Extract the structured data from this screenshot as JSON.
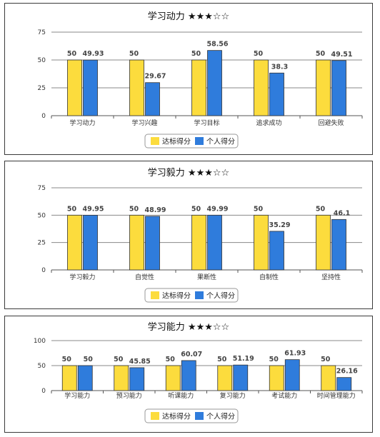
{
  "colors": {
    "target": "#fcdc3d",
    "personal": "#2f7cdc",
    "bar_stroke": "#333333",
    "grid": "#888888"
  },
  "icons": {
    "legend_target": "yellow-square",
    "legend_personal": "blue-square"
  },
  "chart_data": [
    {
      "type": "bar",
      "title": "学习动力 ★★★☆☆",
      "categories": [
        "学习动力",
        "学习兴趣",
        "学习目标",
        "追求成功",
        "回避失败"
      ],
      "series": [
        {
          "name": "达标得分",
          "values": [
            50,
            50,
            50,
            50,
            50
          ]
        },
        {
          "name": "个人得分",
          "values": [
            49.93,
            29.67,
            58.56,
            38.3,
            49.51
          ]
        }
      ],
      "labels": [
        [
          "50",
          "50",
          "50",
          "50",
          "50"
        ],
        [
          "49.93",
          "29.67",
          "58.56",
          "38.3",
          "49.51"
        ]
      ],
      "yticks": [
        0,
        25,
        50,
        75
      ],
      "ylim": [
        0,
        75
      ],
      "grid": true,
      "legend": "bottom-center"
    },
    {
      "type": "bar",
      "title": "学习毅力 ★★★☆☆",
      "categories": [
        "学习毅力",
        "自觉性",
        "果断性",
        "自制性",
        "坚持性"
      ],
      "series": [
        {
          "name": "达标得分",
          "values": [
            50,
            50,
            50,
            50,
            50
          ]
        },
        {
          "name": "个人得分",
          "values": [
            49.95,
            48.99,
            49.99,
            35.29,
            46.1
          ]
        }
      ],
      "labels": [
        [
          "50",
          "50",
          "50",
          "50",
          "50"
        ],
        [
          "49.95",
          "48.99",
          "49.99",
          "35.29",
          "46.1"
        ]
      ],
      "yticks": [
        0,
        25,
        50,
        75
      ],
      "ylim": [
        0,
        75
      ],
      "grid": true,
      "legend": "bottom-center"
    },
    {
      "type": "bar",
      "title": "学习能力 ★★★☆☆",
      "categories": [
        "学习能力",
        "预习能力",
        "听课能力",
        "复习能力",
        "考试能力",
        "时间管理能力"
      ],
      "series": [
        {
          "name": "达标得分",
          "values": [
            50,
            50,
            50,
            50,
            50,
            50
          ]
        },
        {
          "name": "个人得分",
          "values": [
            50,
            45.85,
            60.07,
            51.19,
            61.93,
            26.16
          ]
        }
      ],
      "labels": [
        [
          "50",
          "50",
          "50",
          "50",
          "50",
          "50"
        ],
        [
          "50",
          "45.85",
          "60.07",
          "51.19",
          "61.93",
          "26.16"
        ]
      ],
      "yticks": [
        0,
        50,
        100
      ],
      "ylim": [
        0,
        100
      ],
      "grid": true,
      "legend": "bottom-center"
    }
  ]
}
